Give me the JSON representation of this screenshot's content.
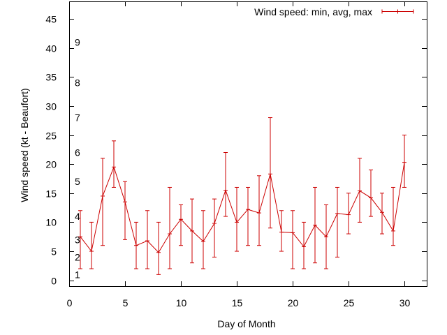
{
  "chart_data": {
    "type": "line",
    "title": "",
    "xlabel": "Day of Month",
    "ylabel": "Wind speed (kt - Beaufort)",
    "xlim": [
      0,
      32
    ],
    "ylim": [
      -1,
      48
    ],
    "x_ticks": [
      0,
      5,
      10,
      15,
      20,
      25,
      30
    ],
    "y_ticks": [
      0,
      5,
      10,
      15,
      20,
      25,
      30,
      35,
      40,
      45
    ],
    "grid": false,
    "legend_position": "top-right",
    "colors": {
      "series": "#cc0000",
      "axis": "#000000"
    },
    "beaufort_labels": [
      {
        "text": "1",
        "y": 1
      },
      {
        "text": "2",
        "y": 4
      },
      {
        "text": "3",
        "y": 7
      },
      {
        "text": "4",
        "y": 11
      },
      {
        "text": "5",
        "y": 17
      },
      {
        "text": "6",
        "y": 22
      },
      {
        "text": "7",
        "y": 28
      },
      {
        "text": "8",
        "y": 34
      },
      {
        "text": "9",
        "y": 41
      }
    ],
    "series": [
      {
        "name": "Wind speed: min, avg, max",
        "points": [
          {
            "x": 1,
            "min": 2,
            "avg": 7.5,
            "max": 12
          },
          {
            "x": 2,
            "min": 2,
            "avg": 5,
            "max": 10
          },
          {
            "x": 3,
            "min": 6,
            "avg": 14.5,
            "max": 21
          },
          {
            "x": 4,
            "min": 16,
            "avg": 19.5,
            "max": 24
          },
          {
            "x": 5,
            "min": 7,
            "avg": 13.5,
            "max": 17
          },
          {
            "x": 6,
            "min": 2,
            "avg": 6,
            "max": 10
          },
          {
            "x": 7,
            "min": 2,
            "avg": 6.8,
            "max": 12
          },
          {
            "x": 8,
            "min": 1,
            "avg": 4.8,
            "max": 10
          },
          {
            "x": 9,
            "min": 2,
            "avg": 8,
            "max": 16
          },
          {
            "x": 10,
            "min": 6,
            "avg": 10.5,
            "max": 13
          },
          {
            "x": 11,
            "min": 3,
            "avg": 8.5,
            "max": 14
          },
          {
            "x": 12,
            "min": 2,
            "avg": 6.7,
            "max": 12
          },
          {
            "x": 13,
            "min": 4,
            "avg": 9.8,
            "max": 14
          },
          {
            "x": 14,
            "min": 11,
            "avg": 15.5,
            "max": 22
          },
          {
            "x": 15,
            "min": 5,
            "avg": 10,
            "max": 16
          },
          {
            "x": 16,
            "min": 6,
            "avg": 12.2,
            "max": 16
          },
          {
            "x": 17,
            "min": 6,
            "avg": 11.6,
            "max": 18
          },
          {
            "x": 18,
            "min": 9,
            "avg": 18.3,
            "max": 28
          },
          {
            "x": 19,
            "min": 5,
            "avg": 8.3,
            "max": 12
          },
          {
            "x": 20,
            "min": 2,
            "avg": 8.2,
            "max": 12
          },
          {
            "x": 21,
            "min": 2,
            "avg": 5.8,
            "max": 10
          },
          {
            "x": 22,
            "min": 3,
            "avg": 9.5,
            "max": 16
          },
          {
            "x": 23,
            "min": 2,
            "avg": 7.5,
            "max": 13
          },
          {
            "x": 24,
            "min": 4,
            "avg": 11.5,
            "max": 16
          },
          {
            "x": 25,
            "min": 8,
            "avg": 11.3,
            "max": 15
          },
          {
            "x": 26,
            "min": 10,
            "avg": 15.4,
            "max": 21
          },
          {
            "x": 27,
            "min": 11,
            "avg": 14.2,
            "max": 19
          },
          {
            "x": 28,
            "min": 8,
            "avg": 11.7,
            "max": 15
          },
          {
            "x": 29,
            "min": 6,
            "avg": 8.5,
            "max": 16
          },
          {
            "x": 30,
            "min": 16,
            "avg": 20.3,
            "max": 25
          }
        ]
      }
    ]
  }
}
